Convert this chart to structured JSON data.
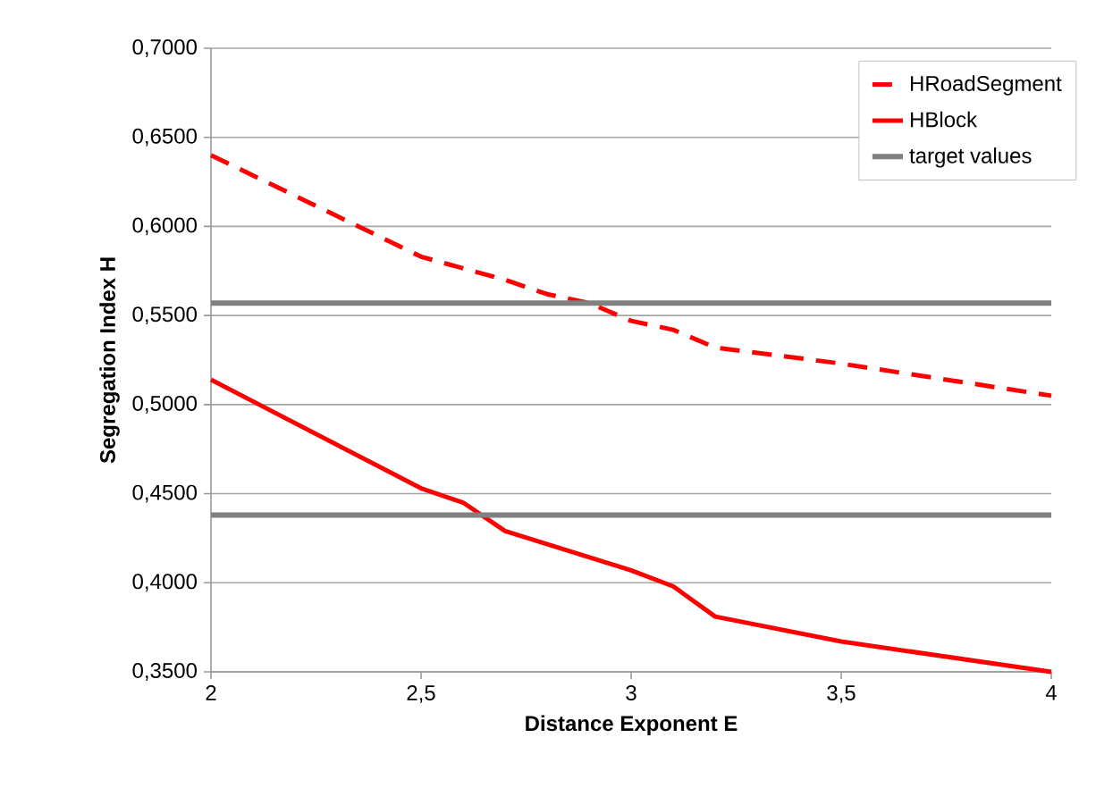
{
  "chart_data": {
    "type": "line",
    "xlabel": "Distance Exponent E",
    "ylabel": "Segregation Index H",
    "series": [
      {
        "name": "HRoadSegment",
        "color": "#ff0000",
        "line_style": "dashed",
        "x": [
          2,
          2.5,
          2.7,
          2.8,
          2.9,
          3.0,
          3.1,
          3.2,
          3.5,
          4
        ],
        "values": [
          0.64,
          0.583,
          0.57,
          0.562,
          0.557,
          0.547,
          0.542,
          0.532,
          0.523,
          0.505
        ]
      },
      {
        "name": "HBlock",
        "color": "#ff0000",
        "line_style": "solid",
        "x": [
          2,
          2.5,
          2.6,
          2.7,
          3.0,
          3.1,
          3.2,
          3.5,
          4
        ],
        "values": [
          0.514,
          0.453,
          0.445,
          0.429,
          0.407,
          0.398,
          0.381,
          0.367,
          0.35
        ]
      }
    ],
    "ref_lines": [
      {
        "axis": "y",
        "value": 0.557,
        "label": "target values",
        "color": "#808080"
      },
      {
        "axis": "y",
        "value": 0.438,
        "color": "#808080"
      }
    ],
    "xlim": [
      2,
      4
    ],
    "ylim": [
      0.35,
      0.7
    ],
    "xticks": [
      {
        "value": 2,
        "label": "2"
      },
      {
        "value": 2.5,
        "label": "2,5"
      },
      {
        "value": 3,
        "label": "3"
      },
      {
        "value": 3.5,
        "label": "3,5"
      },
      {
        "value": 4,
        "label": "4"
      }
    ],
    "yticks": [
      {
        "value": 0.35,
        "label": "0,3500"
      },
      {
        "value": 0.4,
        "label": "0,4000"
      },
      {
        "value": 0.45,
        "label": "0,4500"
      },
      {
        "value": 0.5,
        "label": "0,5000"
      },
      {
        "value": 0.55,
        "label": "0,5500"
      },
      {
        "value": 0.6,
        "label": "0,6000"
      },
      {
        "value": 0.65,
        "label": "0,6500"
      },
      {
        "value": 0.7,
        "label": "0,7000"
      }
    ],
    "grid": "y",
    "legend": "top right",
    "marker": "none"
  }
}
